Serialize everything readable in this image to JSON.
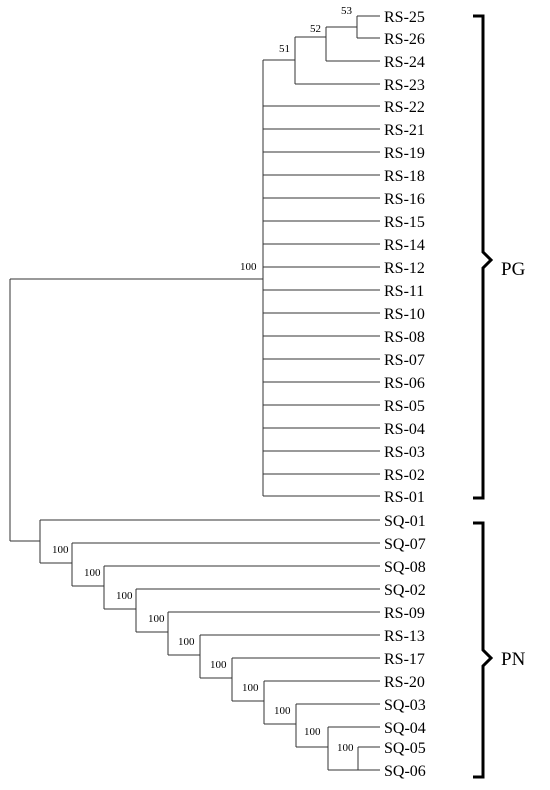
{
  "tree": {
    "leaves": [
      "RS-25",
      "RS-26",
      "RS-24",
      "RS-23",
      "RS-22",
      "RS-21",
      "RS-19",
      "RS-18",
      "RS-16",
      "RS-15",
      "RS-14",
      "RS-12",
      "RS-11",
      "RS-10",
      "RS-08",
      "RS-07",
      "RS-06",
      "RS-05",
      "RS-04",
      "RS-03",
      "RS-02",
      "RS-01",
      "SQ-01",
      "SQ-07",
      "SQ-08",
      "SQ-02",
      "RS-09",
      "RS-13",
      "RS-17",
      "RS-20",
      "SQ-03",
      "SQ-04",
      "SQ-05",
      "SQ-06"
    ],
    "support_values": {
      "pg_clade": "100",
      "rs23_node": "51",
      "rs24_node": "52",
      "rs25_26_node": "53",
      "pn_nodes": [
        "100",
        "100",
        "100",
        "100",
        "100",
        "100",
        "100",
        "100",
        "100",
        "100"
      ]
    }
  },
  "clades": [
    {
      "label": "PG"
    },
    {
      "label": "PN"
    }
  ]
}
